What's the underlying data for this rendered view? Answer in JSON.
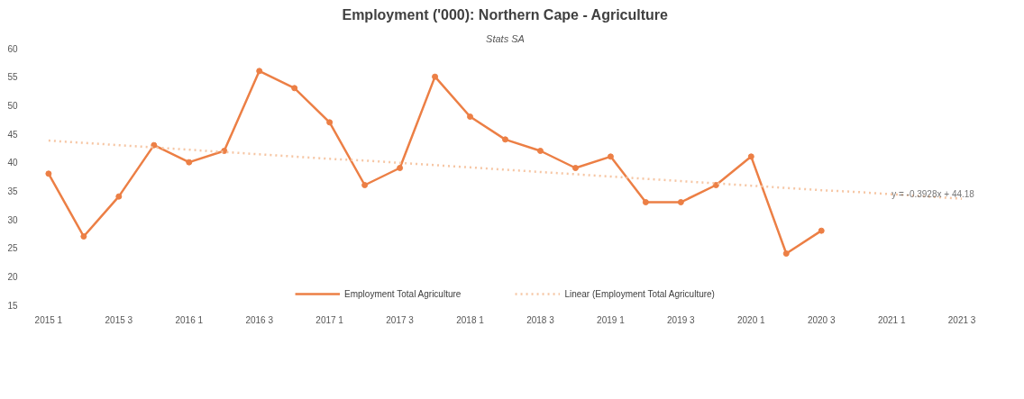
{
  "chart_data": {
    "type": "line",
    "title": "Employment ('000): Northern Cape - Agriculture",
    "subtitle": "Stats SA",
    "categories": [
      "2015 1",
      null,
      "2015 3",
      null,
      "2016 1",
      null,
      "2016 3",
      null,
      "2017 1",
      null,
      "2017 3",
      null,
      "2018 1",
      null,
      "2018 3",
      null,
      "2019 1",
      null,
      "2019 3",
      null,
      "2020 1",
      null,
      "2020 3",
      null,
      "2021 1",
      null,
      "2021 3"
    ],
    "series": [
      {
        "name": "Employment Total Agriculture",
        "color": "#ec7f45",
        "marker": "circle",
        "line_style": "solid",
        "values": [
          38,
          27,
          34,
          43,
          40,
          42,
          56,
          53,
          47,
          36,
          39,
          55,
          48,
          44,
          42,
          39,
          41,
          33,
          33,
          36,
          41,
          24,
          28,
          null,
          null,
          null,
          null
        ]
      },
      {
        "name": "Linear (Employment Total Agriculture)",
        "color": "#f6c6a4",
        "marker": "none",
        "line_style": "dotted",
        "values": [
          43.8,
          43.4,
          43.0,
          42.6,
          42.2,
          41.8,
          41.4,
          41.0,
          40.6,
          40.3,
          39.9,
          39.5,
          39.1,
          38.7,
          38.3,
          37.9,
          37.5,
          37.1,
          36.7,
          36.3,
          35.9,
          35.5,
          35.1,
          34.8,
          34.4,
          34.0,
          33.6
        ]
      }
    ],
    "ylim": [
      15,
      60
    ],
    "yticks": [
      15,
      20,
      25,
      30,
      35,
      40,
      45,
      50,
      55,
      60
    ],
    "grid": false,
    "legend": "bottom",
    "annotations": [
      {
        "text": "y = -0.3928x + 44.18",
        "x": "2021 1",
        "y": 34.5
      }
    ]
  }
}
